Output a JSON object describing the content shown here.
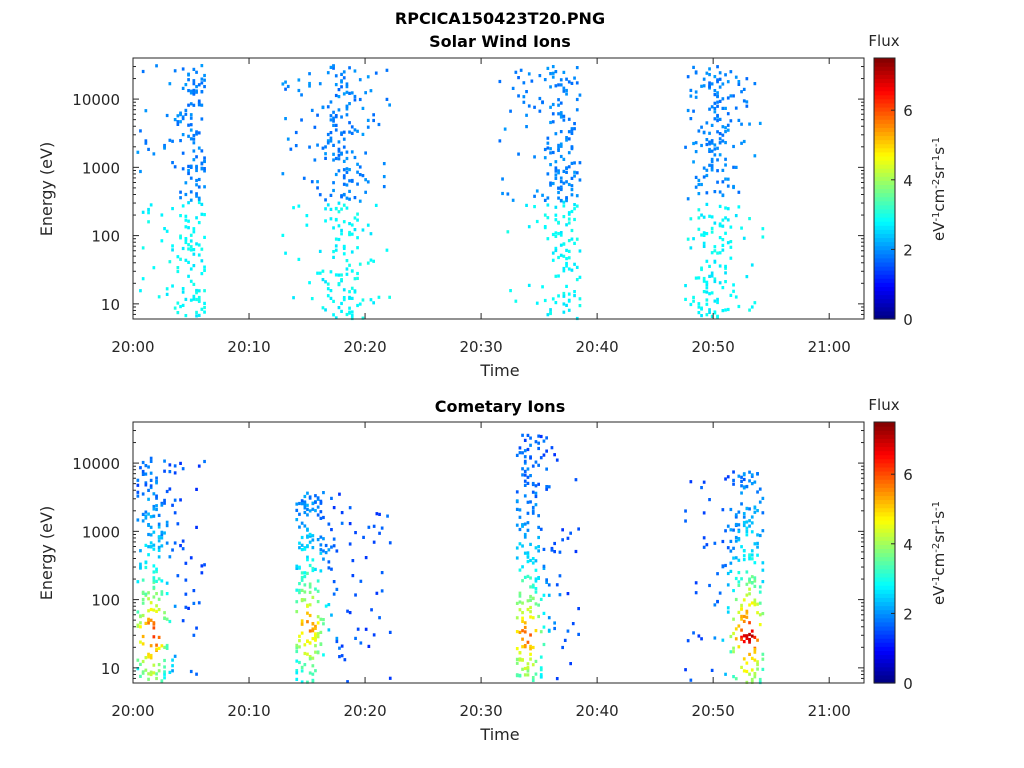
{
  "figure": {
    "filename": "RPCICA150423T20.PNG",
    "colorbar_label_base": "eV",
    "colorbar_label_exp": "-1",
    "colorbar_label_cm": "cm",
    "colorbar_label_cm_exp": "-2",
    "colorbar_label_sr": "sr",
    "colorbar_label_sr_exp": "-1",
    "colorbar_label_s": "s",
    "colorbar_label_s_exp": "-1"
  },
  "chart_data": [
    {
      "type": "heatmap",
      "title": "Solar Wind Ions",
      "xlabel": "Time",
      "ylabel": "Energy (eV)",
      "y_scale": "log",
      "ylim": [
        6,
        40000
      ],
      "x_ticks": [
        "20:00",
        "20:10",
        "20:20",
        "20:30",
        "20:40",
        "20:50",
        "21:00"
      ],
      "x_range_minutes": [
        0,
        63
      ],
      "y_ticks": [
        "10",
        "100",
        "1000",
        "10000"
      ],
      "colorbar": {
        "label": "Flux",
        "ticks": [
          "0",
          "2",
          "4",
          "6"
        ],
        "range": [
          0,
          7.5
        ],
        "colormap": "jet"
      },
      "bursts": [
        {
          "start_min": 0.3,
          "end_min": 6.2,
          "core_min": 5.3,
          "emin": 6,
          "emax": 32000,
          "ecore": 1500,
          "fmin": 1.5,
          "fmax": 2.4
        },
        {
          "start_min": 12.8,
          "end_min": 22.2,
          "core_min": 18.0,
          "emin": 6,
          "emax": 32000,
          "ecore": 1500,
          "fmin": 1.5,
          "fmax": 2.4
        },
        {
          "start_min": 31.5,
          "end_min": 38.5,
          "core_min": 37.0,
          "emin": 6,
          "emax": 30000,
          "ecore": 1500,
          "fmin": 1.5,
          "fmax": 2.4
        },
        {
          "start_min": 47.5,
          "end_min": 54.2,
          "core_min": 50.0,
          "emin": 6,
          "emax": 30000,
          "ecore": 1500,
          "fmin": 1.5,
          "fmax": 2.4
        }
      ]
    },
    {
      "type": "heatmap",
      "title": "Cometary Ions",
      "xlabel": "Time",
      "ylabel": "Energy (eV)",
      "y_scale": "log",
      "ylim": [
        6,
        40000
      ],
      "x_ticks": [
        "20:00",
        "20:10",
        "20:20",
        "20:30",
        "20:40",
        "20:50",
        "21:00"
      ],
      "x_range_minutes": [
        0,
        63
      ],
      "y_ticks": [
        "10",
        "100",
        "1000",
        "10000"
      ],
      "colorbar": {
        "label": "Flux",
        "ticks": [
          "0",
          "2",
          "4",
          "6"
        ],
        "range": [
          0,
          7.5
        ],
        "colormap": "jet"
      },
      "bursts": [
        {
          "start_min": 0.3,
          "end_min": 6.2,
          "core_min": 1.5,
          "emin": 6,
          "emax": 12000,
          "ecore": 30,
          "fmin": 1.5,
          "fmax": 6.5
        },
        {
          "start_min": 14.0,
          "end_min": 22.2,
          "core_min": 15.0,
          "emin": 6,
          "emax": 4000,
          "ecore": 40,
          "fmin": 1.5,
          "fmax": 5.8
        },
        {
          "start_min": 33.0,
          "end_min": 38.5,
          "core_min": 33.8,
          "emin": 6,
          "emax": 28000,
          "ecore": 30,
          "fmin": 1.5,
          "fmax": 6.2
        },
        {
          "start_min": 47.5,
          "end_min": 54.2,
          "core_min": 52.9,
          "emin": 6,
          "emax": 8000,
          "ecore": 30,
          "fmin": 1.5,
          "fmax": 7.2
        }
      ]
    }
  ]
}
